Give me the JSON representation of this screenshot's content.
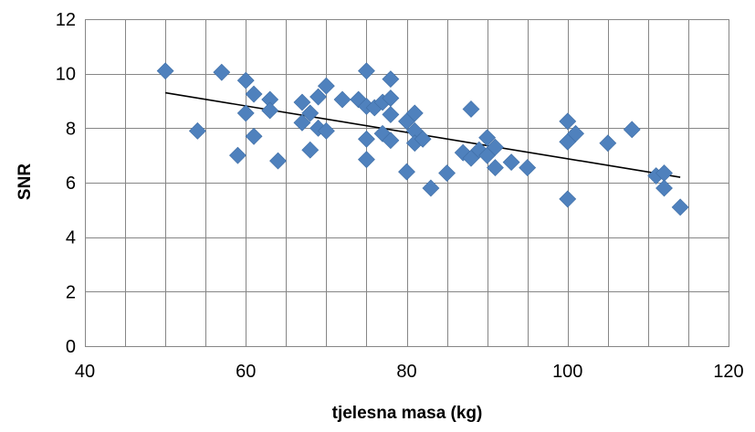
{
  "chart_data": {
    "type": "scatter",
    "title": "",
    "xlabel": "tjelesna masa (kg)",
    "ylabel": "SNR",
    "xlim": [
      40,
      120
    ],
    "ylim": [
      0,
      12
    ],
    "xticks": [
      40,
      60,
      80,
      100,
      120
    ],
    "yticks": [
      0,
      2,
      4,
      6,
      8,
      10,
      12
    ],
    "x_minor_step": 5,
    "y_major_step": 2,
    "grid": true,
    "legend": "none",
    "marker": "diamond",
    "marker_color": "#4F81BD",
    "trendline": {
      "type": "linear",
      "x": [
        50,
        114
      ],
      "y": [
        9.3,
        6.2
      ],
      "color": "#000000"
    },
    "points": [
      {
        "x": 50,
        "y": 10.1
      },
      {
        "x": 54,
        "y": 7.9
      },
      {
        "x": 57,
        "y": 10.05
      },
      {
        "x": 59,
        "y": 7.0
      },
      {
        "x": 60,
        "y": 9.75
      },
      {
        "x": 60,
        "y": 8.55
      },
      {
        "x": 61,
        "y": 9.25
      },
      {
        "x": 61,
        "y": 7.7
      },
      {
        "x": 63,
        "y": 9.05
      },
      {
        "x": 63,
        "y": 8.65
      },
      {
        "x": 64,
        "y": 6.8
      },
      {
        "x": 67,
        "y": 8.95
      },
      {
        "x": 67,
        "y": 8.2
      },
      {
        "x": 68,
        "y": 8.55
      },
      {
        "x": 68,
        "y": 7.2
      },
      {
        "x": 69,
        "y": 9.15
      },
      {
        "x": 69,
        "y": 8.0
      },
      {
        "x": 70,
        "y": 9.55
      },
      {
        "x": 70,
        "y": 7.9
      },
      {
        "x": 72,
        "y": 9.05
      },
      {
        "x": 74,
        "y": 9.05
      },
      {
        "x": 75,
        "y": 10.1
      },
      {
        "x": 75,
        "y": 8.8
      },
      {
        "x": 75,
        "y": 7.6
      },
      {
        "x": 75,
        "y": 6.85
      },
      {
        "x": 76,
        "y": 8.75
      },
      {
        "x": 77,
        "y": 8.95
      },
      {
        "x": 77,
        "y": 7.8
      },
      {
        "x": 78,
        "y": 9.8
      },
      {
        "x": 78,
        "y": 9.1
      },
      {
        "x": 78,
        "y": 8.5
      },
      {
        "x": 78,
        "y": 7.55
      },
      {
        "x": 80,
        "y": 8.25
      },
      {
        "x": 80,
        "y": 6.4
      },
      {
        "x": 81,
        "y": 8.55
      },
      {
        "x": 81,
        "y": 7.9
      },
      {
        "x": 81,
        "y": 7.45
      },
      {
        "x": 82,
        "y": 7.6
      },
      {
        "x": 83,
        "y": 5.8
      },
      {
        "x": 85,
        "y": 6.35
      },
      {
        "x": 87,
        "y": 7.1
      },
      {
        "x": 88,
        "y": 8.7
      },
      {
        "x": 88,
        "y": 6.9
      },
      {
        "x": 89,
        "y": 7.2
      },
      {
        "x": 90,
        "y": 7.65
      },
      {
        "x": 90,
        "y": 7.0
      },
      {
        "x": 91,
        "y": 7.3
      },
      {
        "x": 91,
        "y": 6.55
      },
      {
        "x": 93,
        "y": 6.75
      },
      {
        "x": 95,
        "y": 6.55
      },
      {
        "x": 100,
        "y": 8.25
      },
      {
        "x": 100,
        "y": 7.5
      },
      {
        "x": 100,
        "y": 5.4
      },
      {
        "x": 101,
        "y": 7.8
      },
      {
        "x": 105,
        "y": 7.45
      },
      {
        "x": 108,
        "y": 7.95
      },
      {
        "x": 111,
        "y": 6.25
      },
      {
        "x": 112,
        "y": 6.35
      },
      {
        "x": 112,
        "y": 5.8
      },
      {
        "x": 114,
        "y": 5.1
      }
    ]
  }
}
